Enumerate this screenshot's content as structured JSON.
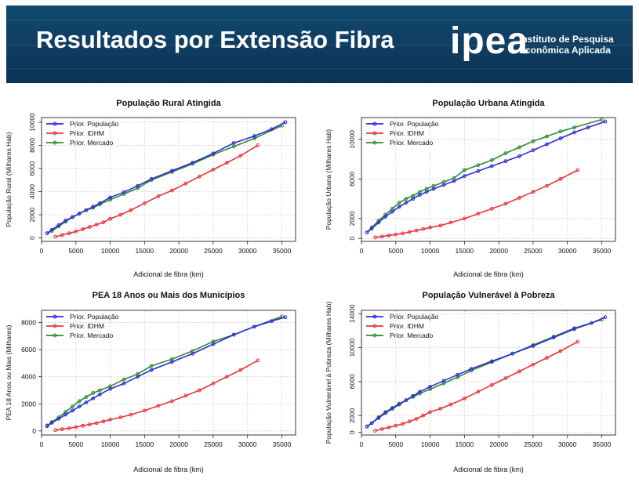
{
  "banner": {
    "title": "Resultados por Extensão Fibra",
    "logo_word": "ipea",
    "logo_line1": "Instituto de Pesquisa",
    "logo_line2": "Econômica Aplicada"
  },
  "colors": {
    "pop": "#2b2bd9",
    "idhm": "#e8343a",
    "merc": "#2e8b2e",
    "banner": "#0e3c60"
  },
  "chart_data": [
    {
      "type": "line",
      "title": "População Rural Atingida",
      "xlabel": "Adicional de fibra (km)",
      "ylabel": "População Rural (Milhares Hab)",
      "xlim": [
        0,
        37000
      ],
      "ylim": [
        -300,
        10400
      ],
      "xticks": [
        0,
        5000,
        10000,
        15000,
        20000,
        25000,
        30000,
        35000
      ],
      "yticks": [
        0,
        2000,
        4000,
        6000,
        8000,
        10000
      ],
      "ytick_rotated": true,
      "grid": true,
      "legend": "top-left",
      "series": [
        {
          "name": "Prior. População",
          "color": "#2b2bd9",
          "x": [
            800,
            1500,
            2500,
            3500,
            4500,
            5500,
            6500,
            7500,
            8500,
            10000,
            12000,
            14000,
            16000,
            19000,
            22000,
            25000,
            28000,
            31000,
            33500,
            35500
          ],
          "y": [
            400,
            700,
            1100,
            1500,
            1800,
            2100,
            2400,
            2700,
            3000,
            3500,
            3950,
            4500,
            5100,
            5800,
            6500,
            7300,
            8200,
            8800,
            9400,
            10000
          ]
        },
        {
          "name": "Prior. IDHM",
          "color": "#e8343a",
          "x": [
            2000,
            3000,
            4000,
            5000,
            6000,
            7000,
            8000,
            9000,
            10000,
            11500,
            13000,
            15000,
            17000,
            19000,
            21000,
            23000,
            25000,
            27000,
            29000,
            31500
          ],
          "y": [
            100,
            250,
            400,
            550,
            750,
            950,
            1150,
            1350,
            1650,
            2000,
            2400,
            3000,
            3600,
            4100,
            4700,
            5300,
            5900,
            6500,
            7100,
            8000
          ]
        },
        {
          "name": "Prior. Mercado",
          "color": "#2e8b2e",
          "x": [
            800,
            1500,
            2500,
            3500,
            4500,
            5500,
            6500,
            7500,
            8500,
            10000,
            12000,
            14000,
            16000,
            19000,
            22000,
            25000,
            28000,
            31000,
            35000
          ],
          "y": [
            400,
            600,
            1000,
            1400,
            1800,
            2100,
            2400,
            2600,
            2900,
            3300,
            3800,
            4300,
            5000,
            5700,
            6400,
            7200,
            7900,
            8600,
            9700
          ]
        }
      ]
    },
    {
      "type": "line",
      "title": "População Urbana Atingida",
      "xlabel": "Adicional de fibra (km)",
      "ylabel": "População Urbana (Milhares Hab)",
      "xlim": [
        0,
        37000
      ],
      "ylim": [
        -300,
        12200
      ],
      "xticks": [
        0,
        5000,
        10000,
        15000,
        20000,
        25000,
        30000,
        35000
      ],
      "yticks": [
        0,
        2000,
        6000,
        10000
      ],
      "ytick_rotated": true,
      "grid": true,
      "legend": "top-left",
      "series": [
        {
          "name": "Prior. População",
          "color": "#2b2bd9",
          "x": [
            800,
            1500,
            2500,
            3500,
            4500,
            5500,
            6500,
            7500,
            8500,
            9500,
            10500,
            12000,
            13500,
            15000,
            17000,
            19000,
            21000,
            23000,
            25000,
            27000,
            29000,
            31000,
            33000,
            35500
          ],
          "y": [
            600,
            1000,
            1600,
            2200,
            2700,
            3200,
            3600,
            4000,
            4400,
            4700,
            5000,
            5400,
            5800,
            6300,
            6800,
            7300,
            7800,
            8300,
            8900,
            9500,
            10100,
            10700,
            11200,
            11800
          ]
        },
        {
          "name": "Prior. IDHM",
          "color": "#e8343a",
          "x": [
            2000,
            3000,
            4000,
            5000,
            6000,
            7000,
            8000,
            9000,
            10000,
            11500,
            13000,
            15000,
            17000,
            19000,
            21000,
            23000,
            25000,
            27000,
            29000,
            31500
          ],
          "y": [
            100,
            200,
            300,
            400,
            500,
            650,
            800,
            950,
            1100,
            1300,
            1600,
            2000,
            2500,
            3000,
            3500,
            4100,
            4700,
            5300,
            6000,
            6900
          ]
        },
        {
          "name": "Prior. Mercado",
          "color": "#2e8b2e",
          "x": [
            800,
            1500,
            2500,
            3500,
            4500,
            5500,
            6500,
            7500,
            8500,
            9500,
            10500,
            12000,
            13500,
            15000,
            17000,
            19000,
            21000,
            23000,
            25000,
            27000,
            29000,
            31000,
            35000
          ],
          "y": [
            600,
            1100,
            1800,
            2400,
            3000,
            3600,
            4000,
            4300,
            4700,
            5000,
            5300,
            5700,
            6100,
            6900,
            7400,
            7900,
            8600,
            9200,
            9800,
            10300,
            10800,
            11200,
            12000
          ]
        }
      ]
    },
    {
      "type": "line",
      "title": "PEA 18 Anos ou Mais dos Municípios",
      "xlabel": "Adicional de fibra (km)",
      "ylabel": "PEA 18 Anos ou Mais (Milhares)",
      "xlim": [
        0,
        37000
      ],
      "ylim": [
        -300,
        8900
      ],
      "xticks": [
        0,
        5000,
        10000,
        15000,
        20000,
        25000,
        30000,
        35000
      ],
      "yticks": [
        0,
        2000,
        4000,
        6000,
        8000
      ],
      "ytick_rotated": false,
      "grid": true,
      "legend": "top-left",
      "series": [
        {
          "name": "Prior. População",
          "color": "#2b2bd9",
          "x": [
            800,
            1500,
            2500,
            3500,
            4500,
            5500,
            6500,
            7500,
            8500,
            10000,
            12000,
            14000,
            16000,
            19000,
            22000,
            25000,
            28000,
            31000,
            33500,
            35500
          ],
          "y": [
            350,
            600,
            900,
            1200,
            1500,
            1800,
            2100,
            2400,
            2700,
            3100,
            3500,
            4000,
            4500,
            5100,
            5700,
            6400,
            7100,
            7700,
            8100,
            8400
          ]
        },
        {
          "name": "Prior. IDHM",
          "color": "#e8343a",
          "x": [
            2000,
            3000,
            4000,
            5000,
            6000,
            7000,
            8000,
            9000,
            10000,
            11500,
            13000,
            15000,
            17000,
            19000,
            21000,
            23000,
            25000,
            27000,
            29000,
            31500
          ],
          "y": [
            60,
            130,
            200,
            280,
            380,
            480,
            580,
            700,
            830,
            1000,
            1200,
            1500,
            1850,
            2200,
            2600,
            3000,
            3500,
            4000,
            4500,
            5200
          ]
        },
        {
          "name": "Prior. Mercado",
          "color": "#2e8b2e",
          "x": [
            800,
            1500,
            2500,
            3500,
            4500,
            5500,
            6500,
            7500,
            8500,
            10000,
            12000,
            14000,
            16000,
            19000,
            22000,
            25000,
            28000,
            31000,
            35000
          ],
          "y": [
            400,
            650,
            1000,
            1400,
            1800,
            2200,
            2500,
            2800,
            3000,
            3300,
            3800,
            4200,
            4800,
            5300,
            5900,
            6600,
            7100,
            7700,
            8450
          ]
        }
      ]
    },
    {
      "type": "line",
      "title": "População Vulnerável à Pobreza",
      "xlabel": "Adicional de fibra (km)",
      "ylabel": "População Vulnerável à Pobreza (Milhares Hab)",
      "xlim": [
        0,
        37000
      ],
      "ylim": [
        -300,
        14400
      ],
      "xticks": [
        0,
        5000,
        10000,
        15000,
        20000,
        25000,
        30000,
        35000
      ],
      "yticks": [
        0,
        2000,
        6000,
        10000,
        14000
      ],
      "ytick_rotated": true,
      "grid": true,
      "legend": "top-left",
      "series": [
        {
          "name": "Prior. População",
          "color": "#2b2bd9",
          "x": [
            800,
            1500,
            2500,
            3500,
            4500,
            5500,
            6500,
            7500,
            8500,
            10000,
            12000,
            14000,
            16000,
            19000,
            22000,
            25000,
            28000,
            31000,
            33500,
            35500
          ],
          "y": [
            700,
            1100,
            1700,
            2300,
            2800,
            3300,
            3800,
            4300,
            4800,
            5400,
            6100,
            6800,
            7500,
            8400,
            9300,
            10200,
            11200,
            12200,
            12900,
            13600
          ]
        },
        {
          "name": "Prior. IDHM",
          "color": "#e8343a",
          "x": [
            2000,
            3000,
            4000,
            5000,
            6000,
            7000,
            8000,
            9000,
            10000,
            11500,
            13000,
            15000,
            17000,
            19000,
            21000,
            23000,
            25000,
            27000,
            29000,
            31500
          ],
          "y": [
            200,
            400,
            600,
            800,
            1000,
            1300,
            1600,
            2000,
            2400,
            2800,
            3300,
            4000,
            4800,
            5600,
            6400,
            7200,
            8000,
            8800,
            9600,
            10700
          ]
        },
        {
          "name": "Prior. Mercado",
          "color": "#2e8b2e",
          "x": [
            800,
            1500,
            2500,
            3500,
            4500,
            5500,
            6500,
            7500,
            8500,
            10000,
            12000,
            14000,
            16000,
            19000,
            22000,
            25000,
            28000,
            31000,
            35000
          ],
          "y": [
            700,
            1100,
            1800,
            2400,
            2900,
            3400,
            3800,
            4200,
            4600,
            5100,
            5800,
            6500,
            7300,
            8300,
            9300,
            10300,
            11300,
            12300,
            13300
          ]
        }
      ]
    }
  ]
}
